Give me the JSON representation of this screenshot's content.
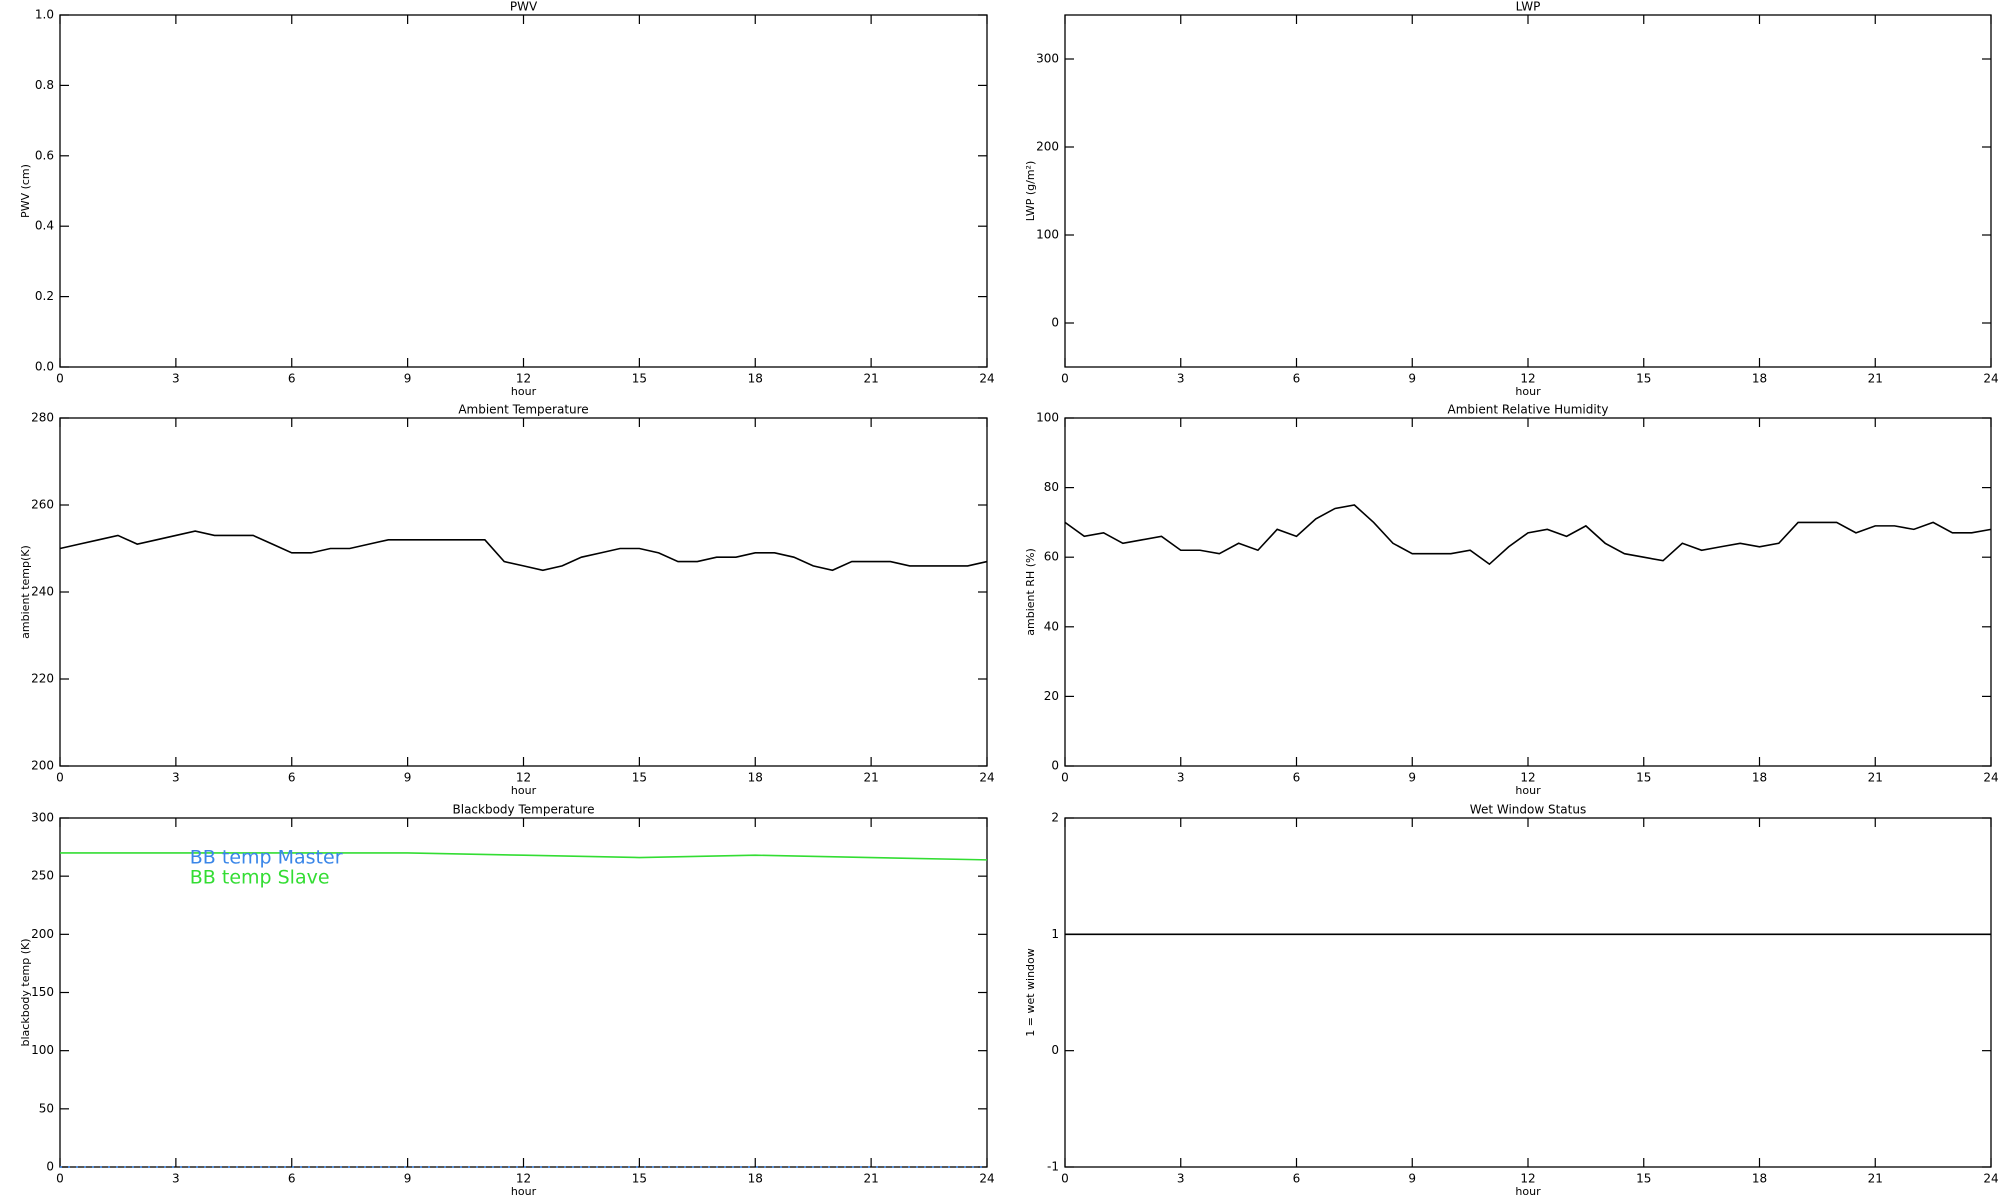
{
  "chart_data": [
    {
      "type": "line",
      "title": "PWV",
      "xlabel": "hour",
      "ylabel": "PWV (cm)",
      "xlim": [
        0,
        24
      ],
      "xticks": [
        0,
        3,
        6,
        9,
        12,
        15,
        18,
        21,
        24
      ],
      "ylim": [
        0,
        1
      ],
      "yticks": [
        {
          "value": 0,
          "label": "0.0"
        },
        0.2,
        0.4,
        0.6,
        0.8,
        {
          "value": 1,
          "label": "1.0"
        }
      ],
      "x": [],
      "series": []
    },
    {
      "type": "line",
      "title": "LWP",
      "xlabel": "hour",
      "ylabel": "LWP (g/m²)",
      "xlim": [
        0,
        24
      ],
      "xticks": [
        0,
        3,
        6,
        9,
        12,
        15,
        18,
        21,
        24
      ],
      "ylim": [
        -50,
        350
      ],
      "yticks": [
        0,
        100,
        200,
        300
      ],
      "x": [],
      "series": []
    },
    {
      "type": "line",
      "title": "Ambient Temperature",
      "xlabel": "hour",
      "ylabel": "ambient temp(K)",
      "xlim": [
        0,
        24
      ],
      "xticks": [
        0,
        3,
        6,
        9,
        12,
        15,
        18,
        21,
        24
      ],
      "ylim": [
        200,
        280
      ],
      "yticks": [
        200,
        220,
        240,
        260,
        280
      ],
      "x": [
        0,
        0.5,
        1,
        1.5,
        2,
        2.5,
        3,
        3.5,
        4,
        4.5,
        5,
        5.5,
        6,
        6.5,
        7,
        7.5,
        8,
        8.5,
        9,
        9.5,
        10,
        10.5,
        11,
        11.5,
        12,
        12.5,
        13,
        13.5,
        14,
        14.5,
        15,
        15.5,
        16,
        16.5,
        17,
        17.5,
        18,
        18.5,
        19,
        19.5,
        20,
        20.5,
        21,
        21.5,
        22,
        22.5,
        23,
        23.5,
        24
      ],
      "series": [
        {
          "color": "#000000",
          "values": [
            250,
            251,
            252,
            253,
            251,
            252,
            253,
            254,
            253,
            253,
            253,
            251,
            249,
            249,
            250,
            250,
            251,
            252,
            252,
            252,
            252,
            252,
            252,
            247,
            246,
            245,
            246,
            248,
            249,
            250,
            250,
            249,
            247,
            247,
            248,
            248,
            249,
            249,
            248,
            246,
            245,
            247,
            247,
            247,
            246,
            246,
            246,
            246,
            247
          ]
        }
      ]
    },
    {
      "type": "line",
      "title": "Ambient Relative Humidity",
      "xlabel": "hour",
      "ylabel": "ambient RH (%)",
      "xlim": [
        0,
        24
      ],
      "xticks": [
        0,
        3,
        6,
        9,
        12,
        15,
        18,
        21,
        24
      ],
      "ylim": [
        0,
        100
      ],
      "yticks": [
        0,
        20,
        40,
        60,
        80,
        100
      ],
      "x": [
        0,
        0.5,
        1,
        1.5,
        2,
        2.5,
        3,
        3.5,
        4,
        4.5,
        5,
        5.5,
        6,
        6.5,
        7,
        7.5,
        8,
        8.5,
        9,
        9.5,
        10,
        10.5,
        11,
        11.5,
        12,
        12.5,
        13,
        13.5,
        14,
        14.5,
        15,
        15.5,
        16,
        16.5,
        17,
        17.5,
        18,
        18.5,
        19,
        19.5,
        20,
        20.5,
        21,
        21.5,
        22,
        22.5,
        23,
        23.5,
        24
      ],
      "series": [
        {
          "color": "#000000",
          "values": [
            70,
            66,
            67,
            64,
            65,
            66,
            62,
            62,
            61,
            64,
            62,
            68,
            66,
            71,
            74,
            75,
            70,
            64,
            61,
            61,
            61,
            62,
            58,
            63,
            67,
            68,
            66,
            69,
            64,
            61,
            60,
            59,
            64,
            62,
            63,
            64,
            63,
            64,
            70,
            70,
            70,
            67,
            69,
            69,
            68,
            70,
            67,
            67,
            68
          ]
        }
      ]
    },
    {
      "type": "line",
      "title": "Blackbody Temperature",
      "xlabel": "hour",
      "ylabel": "blackbody temp (K)",
      "xlim": [
        0,
        24
      ],
      "xticks": [
        0,
        3,
        6,
        9,
        12,
        15,
        18,
        21,
        24
      ],
      "ylim": [
        0,
        300
      ],
      "yticks": [
        0,
        50,
        100,
        150,
        200,
        250,
        300
      ],
      "legend": "upper left",
      "x": [
        0,
        3,
        6,
        9,
        12,
        15,
        18,
        21,
        24
      ],
      "series": [
        {
          "name": "BB temp Master",
          "color": "#3a86e8",
          "values": [
            0,
            0,
            0,
            0,
            0,
            0,
            0,
            0,
            0
          ]
        },
        {
          "name": "BB temp Slave",
          "color": "#33dd33",
          "values": [
            270,
            270,
            270,
            270,
            268,
            266,
            268,
            266,
            264
          ]
        }
      ]
    },
    {
      "type": "line",
      "title": "Wet Window Status",
      "xlabel": "hour",
      "ylabel": "1 = wet window",
      "xlim": [
        0,
        24
      ],
      "xticks": [
        0,
        3,
        6,
        9,
        12,
        15,
        18,
        21,
        24
      ],
      "ylim": [
        -1,
        2
      ],
      "yticks": [
        -1,
        0,
        1,
        2
      ],
      "x": [
        0,
        24
      ],
      "series": [
        {
          "color": "#000000",
          "values": [
            1,
            1
          ]
        }
      ]
    }
  ]
}
